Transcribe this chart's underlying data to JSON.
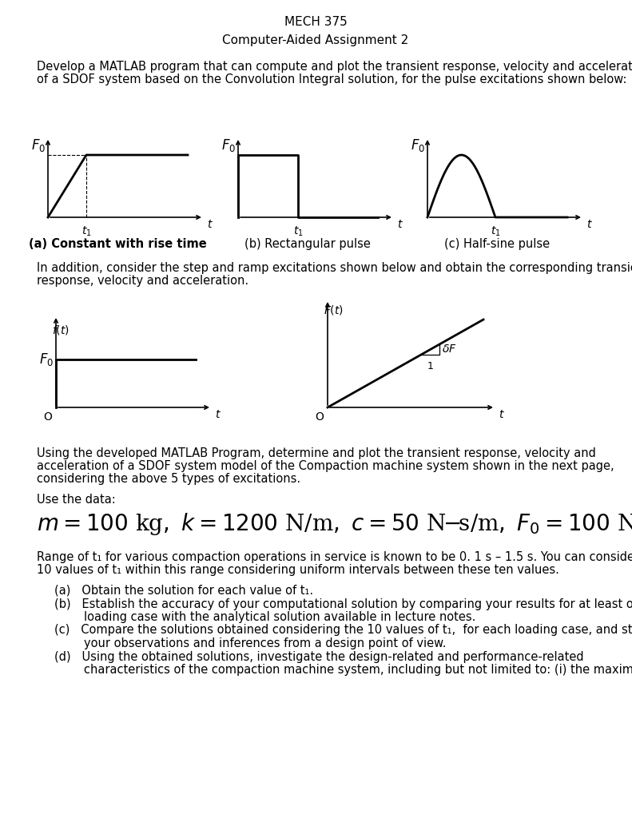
{
  "title": "MECH 375",
  "subtitle": "Computer-Aided Assignment 2",
  "para1_line1": "Develop a MATLAB program that can compute and plot the transient response, velocity and acceleration",
  "para1_line2": "of a SDOF system based on the Convolution Integral solution, for the pulse excitations shown below:",
  "caption_a": "(a) Constant with rise time",
  "caption_b": "(b) Rectangular pulse",
  "caption_c": "(c) Half-sine pulse",
  "para2_line1": "In addition, consider the step and ramp excitations shown below and obtain the corresponding transient",
  "para2_line2": "response, velocity and acceleration.",
  "para3_line1": "Using the developed MATLAB Program, determine and plot the transient response, velocity and",
  "para3_line2": "acceleration of a SDOF system model of the Compaction machine system shown in the next page,",
  "para3_line3": "considering the above 5 types of excitations.",
  "use_data": "Use the data:",
  "para4_line1": "Range of t₁ for various compaction operations in service is known to be 0. 1 s – 1.5 s. You can consider",
  "para4_line2": "10 values of t₁ within this range considering uniform intervals between these ten values.",
  "item_a_1": "(a)   Obtain the solution for each value of t₁.",
  "item_b_1": "(b)   Establish the accuracy of your computational solution by comparing your results for at least one",
  "item_b_2": "        loading case with the analytical solution available in lecture notes.",
  "item_c_1": "(c)   Compare the solutions obtained considering the 10 values of t₁,  for each loading case, and state",
  "item_c_2": "        your observations and inferences from a design point of view.",
  "item_d_1": "(d)   Using the obtained solutions, investigate the design-related and performance-related",
  "item_d_2": "        characteristics of the compaction machine system, including but not limited to: (i) the maximum",
  "bg_color": "#ffffff",
  "text_color": "#000000",
  "line_color": "#000000"
}
